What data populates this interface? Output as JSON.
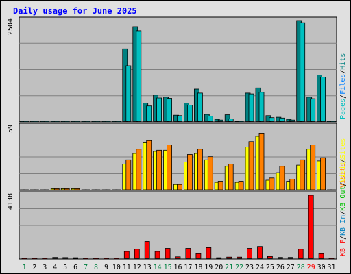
{
  "title": "Daily usage for June 2025",
  "colors": {
    "background": "#e0e0e0",
    "panel": "#c0c0c0",
    "title": "#0000ff",
    "grid": "#808080",
    "pages": "#00c0c0",
    "files": "#0080ff",
    "hits": "#008080",
    "visits": "#ffff00",
    "sites": "#ff8000",
    "kb_out": "#00c000",
    "kb_in": "#0080c0",
    "kb_f": "#ff0000",
    "weekend": "#008040",
    "weekday": "#000000",
    "highlight": "#ff0000"
  },
  "chart_data": [
    {
      "type": "bar",
      "name": "hits-files-pages",
      "max_label": "2504",
      "ymax": 2504,
      "legend": [
        "Pages",
        "/",
        "Files",
        "/",
        "Hits"
      ],
      "series": [
        {
          "name": "Hits",
          "values": [
            0,
            0,
            0,
            2,
            2,
            2,
            0,
            0,
            0,
            0,
            1800,
            2350,
            450,
            650,
            600,
            150,
            450,
            800,
            170,
            50,
            160,
            10,
            700,
            830,
            140,
            100,
            50,
            2504,
            600,
            1150,
            0
          ]
        },
        {
          "name": "Files",
          "values": [
            0,
            0,
            0,
            1,
            1,
            1,
            0,
            0,
            0,
            0,
            1380,
            2250,
            380,
            580,
            570,
            140,
            400,
            700,
            130,
            30,
            60,
            5,
            680,
            720,
            90,
            80,
            30,
            2450,
            560,
            1100,
            0
          ]
        }
      ]
    },
    {
      "type": "bar",
      "name": "visits-sites",
      "max_label": "59",
      "ymax": 59,
      "legend": [
        "Visits",
        "/",
        "Sites"
      ],
      "series": [
        {
          "name": "Visits",
          "values": [
            0,
            0,
            0,
            1,
            1,
            1,
            0,
            0,
            0,
            0,
            24,
            34,
            44,
            36,
            37,
            5,
            26,
            34,
            28,
            7,
            22,
            7,
            40,
            50,
            9,
            16,
            8,
            23,
            38,
            27,
            0
          ]
        },
        {
          "name": "Sites",
          "values": [
            0,
            0,
            0,
            1,
            1,
            1,
            0,
            0,
            0,
            0,
            28,
            38,
            46,
            37,
            42,
            5,
            33,
            38,
            31,
            8,
            24,
            8,
            45,
            53,
            11,
            22,
            10,
            28,
            42,
            30,
            0
          ]
        }
      ]
    },
    {
      "type": "bar",
      "name": "kbytes",
      "max_label": "4138",
      "ymax": 4138,
      "legend": [
        "KB F",
        "/",
        "KB In",
        "/",
        "KB Out",
        "/",
        "Visits"
      ],
      "series": [
        {
          "name": "KB F",
          "values": [
            0,
            0,
            0,
            60,
            50,
            40,
            0,
            0,
            0,
            0,
            450,
            600,
            1100,
            450,
            650,
            100,
            650,
            300,
            700,
            40,
            80,
            80,
            650,
            780,
            120,
            60,
            60,
            600,
            4138,
            300,
            0
          ]
        }
      ]
    }
  ],
  "days": [
    "1",
    "2",
    "3",
    "4",
    "5",
    "6",
    "7",
    "8",
    "9",
    "10",
    "11",
    "12",
    "13",
    "14",
    "15",
    "16",
    "17",
    "18",
    "19",
    "20",
    "21",
    "22",
    "23",
    "24",
    "25",
    "26",
    "27",
    "28",
    "29",
    "30",
    "31"
  ],
  "weekend_days": [
    1,
    7,
    8,
    14,
    15,
    21,
    22,
    28
  ],
  "highlight_days": [
    29
  ]
}
